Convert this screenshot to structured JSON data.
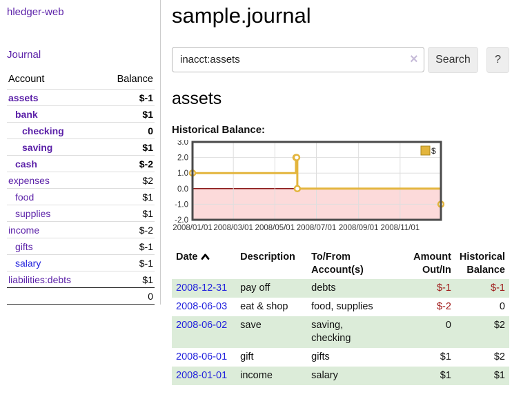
{
  "app": {
    "brand": "hledger-web",
    "nav_journal": "Journal"
  },
  "sidebar": {
    "columns": {
      "account": "Account",
      "balance": "Balance"
    },
    "accounts": [
      {
        "name": "assets",
        "depth": 0,
        "balance": "$-1",
        "bold": true,
        "neg": "strong"
      },
      {
        "name": "bank",
        "depth": 1,
        "balance": "$1",
        "bold": true,
        "neg": "none"
      },
      {
        "name": "checking",
        "depth": 2,
        "balance": "0",
        "bold": true,
        "neg": "none"
      },
      {
        "name": "saving",
        "depth": 2,
        "balance": "$1",
        "bold": true,
        "neg": "none"
      },
      {
        "name": "cash",
        "depth": 1,
        "balance": "$-2",
        "bold": true,
        "neg": "strong"
      },
      {
        "name": "expenses",
        "depth": 0,
        "balance": "$2",
        "bold": false,
        "neg": "none"
      },
      {
        "name": "food",
        "depth": 1,
        "balance": "$1",
        "bold": false,
        "neg": "none"
      },
      {
        "name": "supplies",
        "depth": 1,
        "balance": "$1",
        "bold": false,
        "neg": "none"
      },
      {
        "name": "income",
        "depth": 0,
        "balance": "$-2",
        "bold": false,
        "neg": "weak"
      },
      {
        "name": "gifts",
        "depth": 1,
        "balance": "$-1",
        "bold": false,
        "neg": "weak"
      },
      {
        "name": "salary",
        "depth": 1,
        "balance": "$-1",
        "bold": false,
        "neg": "weak",
        "unvisited": true
      },
      {
        "name": "liabilities:debts",
        "depth": 0,
        "balance": "$1",
        "bold": false,
        "neg": "none"
      }
    ],
    "total": "0"
  },
  "header": {
    "title": "sample.journal"
  },
  "search": {
    "value": "inacct:assets",
    "clear_icon": "×",
    "button_label": "Search",
    "help_label": "?"
  },
  "register": {
    "heading": "assets",
    "chart_label": "Historical Balance:",
    "table": {
      "headers": [
        {
          "l1": "Date",
          "l2": ""
        },
        {
          "l1": "Description",
          "l2": ""
        },
        {
          "l1": "To/From",
          "l2": "Account(s)"
        },
        {
          "l1": "Amount",
          "l2": "Out/In"
        },
        {
          "l1": "Historical",
          "l2": "Balance"
        }
      ],
      "rows": [
        {
          "date": "2008-12-31",
          "description": "pay off",
          "accounts": "debts",
          "amount": "$-1",
          "balance": "$-1"
        },
        {
          "date": "2008-06-03",
          "description": "eat & shop",
          "accounts": "food, supplies",
          "amount": "$-2",
          "balance": "0"
        },
        {
          "date": "2008-06-02",
          "description": "save",
          "accounts": "saving,\nchecking",
          "amount": "0",
          "balance": "$2"
        },
        {
          "date": "2008-06-01",
          "description": "gift",
          "accounts": "gifts",
          "amount": "$1",
          "balance": "$2"
        },
        {
          "date": "2008-01-01",
          "description": "income",
          "accounts": "salary",
          "amount": "$1",
          "balance": "$1"
        }
      ]
    }
  },
  "chart_data": {
    "type": "line",
    "title": "Historical Balance",
    "step": "after",
    "x": [
      "2008-01-01",
      "2008-06-01",
      "2008-06-02",
      "2008-06-03",
      "2008-12-31"
    ],
    "values": [
      1,
      2,
      2,
      0,
      -1
    ],
    "xlim": [
      "2008-01-01",
      "2008-12-31"
    ],
    "ylim": [
      -2,
      3
    ],
    "y_ticks": [
      3.0,
      2.0,
      1.0,
      0.0,
      -1.0,
      -2.0
    ],
    "x_ticks": [
      "2008/01/01",
      "2008/03/01",
      "2008/05/01",
      "2008/07/01",
      "2008/09/01",
      "2008/11/01"
    ],
    "legend": [
      {
        "label": "$",
        "color": "#e3b53d"
      }
    ],
    "legend_position": "top-right",
    "grid": true,
    "series_color": "#e3b53d",
    "negative_region_color": "#fcdada",
    "zero_line_color": "#8b1a1a",
    "border_color": "#4a4a4a"
  }
}
